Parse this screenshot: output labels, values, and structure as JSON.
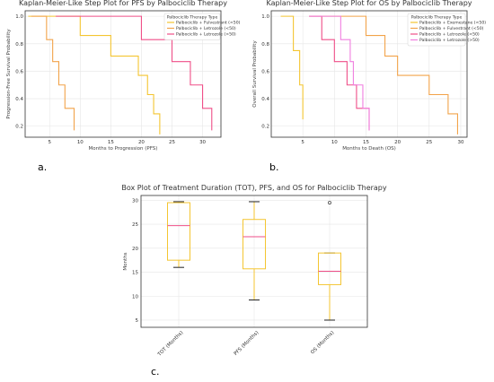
{
  "panel_labels": [
    "a.",
    "b.",
    "c."
  ],
  "chart_data": [
    {
      "type": "line",
      "step": true,
      "title": "Kaplan-Meier-Like Step Plot for PFS by Palbociclib Therapy",
      "xlabel": "Months to Progression (PFS)",
      "ylabel": "Progression-Free Survival Probability",
      "xlim": [
        1,
        33
      ],
      "ylim": [
        0.12,
        1.04
      ],
      "xticks": [
        5,
        10,
        15,
        20,
        25,
        30
      ],
      "yticks": [
        0.2,
        0.4,
        0.6,
        0.8,
        1.0
      ],
      "legend_title": "Palbociclib Therapy Type",
      "legend_position": "top-right",
      "grid": true,
      "series": [
        {
          "name": "Palbociclib + Fulvestrant (<50)",
          "color": "#f4c531",
          "x": [
            1.5,
            5,
            10,
            15,
            19.5,
            21,
            22,
            23
          ],
          "y": [
            1.0,
            1.0,
            0.86,
            0.71,
            0.57,
            0.43,
            0.29,
            0.14
          ]
        },
        {
          "name": "Palbociclib + Letrozole (<50)",
          "color": "#f2a34a",
          "x": [
            2,
            4.5,
            5.5,
            6.5,
            7.5,
            9
          ],
          "y": [
            1.0,
            0.83,
            0.67,
            0.5,
            0.33,
            0.17
          ]
        },
        {
          "name": "Palbociclib + Letrozole (>50)",
          "color": "#ef4f88",
          "x": [
            6,
            15,
            20,
            25,
            28,
            30,
            31.5
          ],
          "y": [
            1.0,
            1.0,
            0.83,
            0.67,
            0.5,
            0.33,
            0.17
          ]
        }
      ]
    },
    {
      "type": "line",
      "step": true,
      "title": "Kaplan-Meier-Like Step Plot for OS by Palbociclib Therapy",
      "xlabel": "Months to Death (OS)",
      "ylabel": "Overall Survival Probability",
      "xlim": [
        0,
        31
      ],
      "ylim": [
        0.12,
        1.04
      ],
      "xticks": [
        5,
        10,
        15,
        20,
        25,
        30
      ],
      "yticks": [
        0.2,
        0.4,
        0.6,
        0.8,
        1.0
      ],
      "legend_title": "Palbociclib Therapy Type",
      "legend_position": "top-right",
      "grid": true,
      "series": [
        {
          "name": "Palbociclib + Exemestane (<50)",
          "color": "#f4c531",
          "x": [
            1.5,
            2.5,
            3.5,
            4.5,
            5
          ],
          "y": [
            1.0,
            1.0,
            0.75,
            0.5,
            0.25
          ]
        },
        {
          "name": "Palbociclib + Fulvestrant (<50)",
          "color": "#f2a34a",
          "x": [
            6,
            13,
            15,
            18,
            20,
            25,
            28,
            29.5
          ],
          "y": [
            1.0,
            1.0,
            0.86,
            0.71,
            0.57,
            0.43,
            0.29,
            0.14
          ]
        },
        {
          "name": "Palbociclib + Letrozole (<50)",
          "color": "#ef4f88",
          "x": [
            6,
            8,
            10,
            12,
            13.5,
            15.5
          ],
          "y": [
            1.0,
            0.83,
            0.67,
            0.5,
            0.33,
            0.17
          ]
        },
        {
          "name": "Palbociclib + Letrozole (>50)",
          "color": "#f07fe0",
          "x": [
            6,
            10.5,
            11,
            12.5,
            13,
            14.5,
            15.5
          ],
          "y": [
            1.0,
            1.0,
            0.83,
            0.67,
            0.5,
            0.33,
            0.17
          ]
        }
      ]
    },
    {
      "type": "box",
      "title": "Box Plot of Treatment Duration (TOT), PFS, and OS for Palbociclib Therapy",
      "xlabel": "",
      "ylabel": "Months",
      "ylim": [
        3.5,
        31
      ],
      "yticks": [
        5,
        10,
        15,
        20,
        25,
        30
      ],
      "grid": true,
      "box_color": "#f4c531",
      "median_color": "#ef4f88",
      "whisker_cap_color": "#222222",
      "categories": [
        "TOT (Months)",
        "PFS (Months)",
        "OS (Months)"
      ],
      "boxes": [
        {
          "whislo": 16,
          "q1": 17.5,
          "med": 24.7,
          "q3": 29.5,
          "whishi": 29.7,
          "fliers": []
        },
        {
          "whislo": 9.2,
          "q1": 15.7,
          "med": 22.4,
          "q3": 26,
          "whishi": 29.7,
          "fliers": []
        },
        {
          "whislo": 5,
          "q1": 12.4,
          "med": 15.2,
          "q3": 19,
          "whishi": 19,
          "fliers": [
            29.5
          ]
        }
      ]
    }
  ]
}
